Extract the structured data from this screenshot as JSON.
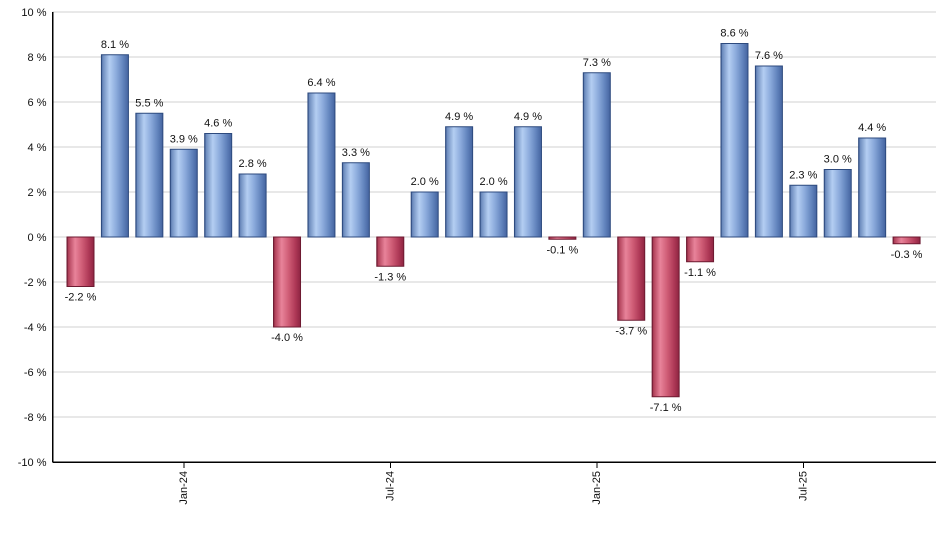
{
  "chart_data": {
    "type": "bar",
    "title": "",
    "xlabel": "",
    "ylabel": "",
    "ylim": [
      -10,
      10
    ],
    "y_step": 2,
    "grid": "horizontal",
    "legend_position": "none",
    "values": [
      -2.2,
      8.1,
      5.5,
      3.9,
      4.6,
      2.8,
      -4.0,
      6.4,
      3.3,
      -1.3,
      2.0,
      4.9,
      2.0,
      4.9,
      -0.1,
      7.3,
      -3.7,
      -7.1,
      -1.1,
      8.6,
      7.6,
      2.3,
      3.0,
      4.4,
      -0.3
    ],
    "bar_labels": [
      "-2.2 %",
      "8.1 %",
      "5.5 %",
      "3.9 %",
      "4.6 %",
      "2.8 %",
      "-4.0 %",
      "6.4 %",
      "3.3 %",
      "-1.3 %",
      "2.0 %",
      "4.9 %",
      "2.0 %",
      "4.9 %",
      "-0.1 %",
      "7.3 %",
      "-3.7 %",
      "-7.1 %",
      "-1.1 %",
      "8.6 %",
      "7.6 %",
      "2.3 %",
      "3.0 %",
      "4.4 %",
      "-0.3 %"
    ],
    "x_tick_labels": [
      {
        "index": 3,
        "label": "Jan-24"
      },
      {
        "index": 9,
        "label": "Jul-24"
      },
      {
        "index": 15,
        "label": "Jan-25"
      },
      {
        "index": 21,
        "label": "Jul-25"
      }
    ],
    "y_tick_labels": [
      "10 %",
      "8 %",
      "6 %",
      "4 %",
      "2 %",
      "0 %",
      "-2 %",
      "-4 %",
      "-6 %",
      "-8 %",
      "-10 %"
    ],
    "y_tick_values": [
      10,
      8,
      6,
      4,
      2,
      0,
      -2,
      -4,
      -6,
      -8,
      -10
    ],
    "colors": {
      "positive_stops": [
        [
          0,
          "#3a5790"
        ],
        [
          0.05,
          "#6c8bbd"
        ],
        [
          0.3,
          "#b4cef2"
        ],
        [
          0.55,
          "#8cabdc"
        ],
        [
          0.8,
          "#6284bd"
        ],
        [
          1,
          "#44639f"
        ]
      ],
      "negative_stops": [
        [
          0,
          "#721b33"
        ],
        [
          0.05,
          "#b04059"
        ],
        [
          0.3,
          "#e8839a"
        ],
        [
          0.55,
          "#d05e77"
        ],
        [
          0.8,
          "#b03a58"
        ],
        [
          1,
          "#8e2441"
        ]
      ],
      "positive_stroke": "#2d4a7e",
      "negative_stroke": "#6d1a31",
      "grid": "#d0d0d0",
      "axis": "#000000",
      "value_label": "#111111"
    }
  }
}
